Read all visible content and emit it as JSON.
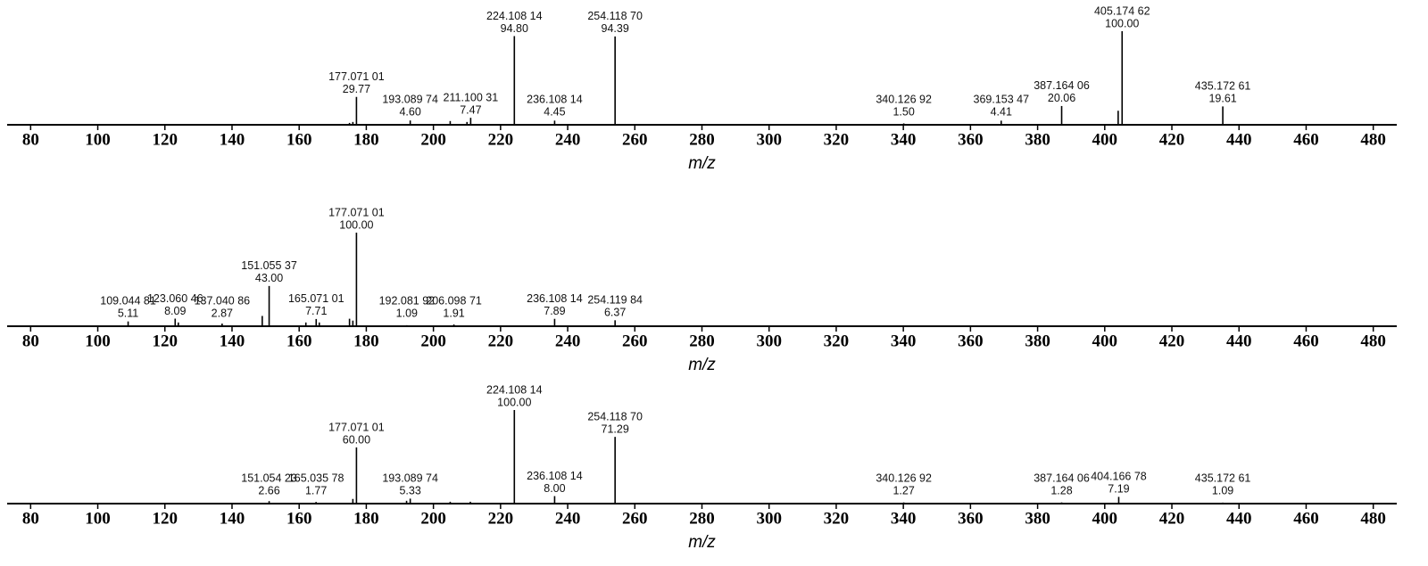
{
  "chart_data": [
    {
      "type": "bar",
      "xlabel": "m/z",
      "color": "#000000",
      "x": [
        175.0,
        176.0,
        177.07101,
        193.08974,
        205.0,
        210.0,
        211.10031,
        224.10814,
        236.10814,
        254.1187,
        340.12692,
        369.15347,
        387.16406,
        404.0,
        405.17462,
        435.17261
      ],
      "values": [
        2,
        3,
        29.77,
        4.6,
        4,
        3,
        7.47,
        94.8,
        4.45,
        94.39,
        1.5,
        4.41,
        20.06,
        15,
        100.0,
        19.61
      ],
      "x_labels": [
        null,
        null,
        "177.071 01",
        "193.089 74",
        null,
        null,
        "211.100 31",
        "224.108 14",
        "236.108 14",
        "254.118 70",
        "340.126 92",
        "369.153 47",
        "387.164 06",
        null,
        "405.174 62",
        "435.172 61"
      ],
      "value_labels": [
        null,
        null,
        "29.77",
        "4.60",
        null,
        null,
        "7.47",
        "94.80",
        "4.45",
        "94.39",
        "1.50",
        "4.41",
        "20.06",
        null,
        "100.00",
        "19.61"
      ],
      "xlim": [
        73,
        487
      ],
      "ylim": [
        0,
        100
      ],
      "xticks": [
        80,
        100,
        120,
        140,
        160,
        180,
        200,
        220,
        240,
        260,
        280,
        300,
        320,
        340,
        360,
        380,
        400,
        420,
        440,
        460,
        480
      ]
    },
    {
      "type": "bar",
      "xlabel": "m/z",
      "color": "#000000",
      "x": [
        109.04481,
        123.06046,
        124.0,
        137.04086,
        149.0,
        151.05537,
        162.0,
        165.07101,
        166.0,
        175.0,
        176.0,
        177.07101,
        192.08192,
        206.09871,
        236.10814,
        254.11984
      ],
      "values": [
        5.11,
        8.09,
        4,
        2.87,
        11,
        43.0,
        4,
        7.71,
        4,
        8,
        6,
        100.0,
        1.09,
        1.91,
        7.89,
        6.37
      ],
      "x_labels": [
        "109.044 81",
        "123.060 46",
        null,
        "137.040 86",
        null,
        "151.055 37",
        null,
        "165.071 01",
        null,
        null,
        null,
        "177.071 01",
        "192.081 92",
        "206.098 71",
        "236.108 14",
        "254.119 84"
      ],
      "value_labels": [
        "5.11",
        "8.09",
        null,
        "2.87",
        null,
        "43.00",
        null,
        "7.71",
        null,
        null,
        null,
        "100.00",
        "1.09",
        "1.91",
        "7.89",
        "6.37"
      ],
      "xlim": [
        73,
        487
      ],
      "ylim": [
        0,
        100
      ],
      "xticks": [
        80,
        100,
        120,
        140,
        160,
        180,
        200,
        220,
        240,
        260,
        280,
        300,
        320,
        340,
        360,
        380,
        400,
        420,
        440,
        460,
        480
      ]
    },
    {
      "type": "bar",
      "xlabel": "m/z",
      "color": "#000000",
      "x": [
        151.05423,
        165.03578,
        176.0,
        177.07101,
        192.0,
        193.08974,
        205.0,
        211.0,
        224.10814,
        236.10814,
        254.1187,
        340.12692,
        387.16406,
        404.16678,
        435.17261
      ],
      "values": [
        2.66,
        1.77,
        5,
        60.0,
        3,
        5.33,
        2,
        2,
        100.0,
        8.0,
        71.29,
        1.27,
        1.28,
        7.19,
        1.09
      ],
      "x_labels": [
        "151.054 23",
        "165.035 78",
        null,
        "177.071 01",
        null,
        "193.089 74",
        null,
        null,
        "224.108 14",
        "236.108 14",
        "254.118 70",
        "340.126 92",
        "387.164 06",
        "404.166 78",
        "435.172 61"
      ],
      "value_labels": [
        "2.66",
        "1.77",
        null,
        "60.00",
        null,
        "5.33",
        null,
        null,
        "100.00",
        "8.00",
        "71.29",
        "1.27",
        "1.28",
        "7.19",
        "1.09"
      ],
      "xlim": [
        73,
        487
      ],
      "ylim": [
        0,
        100
      ],
      "xticks": [
        80,
        100,
        120,
        140,
        160,
        180,
        200,
        220,
        240,
        260,
        280,
        300,
        320,
        340,
        360,
        380,
        400,
        420,
        440,
        460,
        480
      ]
    }
  ]
}
